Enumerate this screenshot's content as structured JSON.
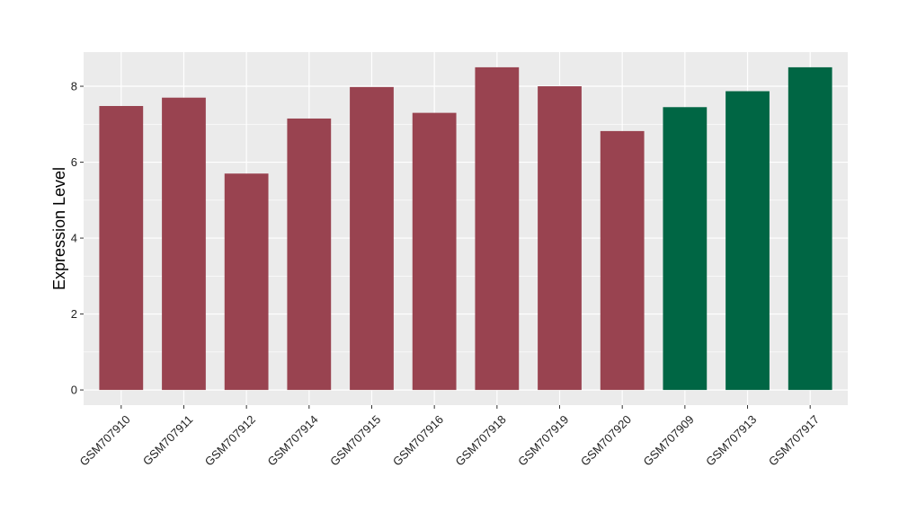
{
  "chart_data": {
    "type": "bar",
    "title": "",
    "xlabel": "",
    "ylabel": "Expression Level",
    "ylim": [
      -0.4,
      8.9
    ],
    "yticks": [
      0,
      2,
      4,
      6,
      8
    ],
    "grid": true,
    "legend": "none",
    "categories": [
      "GSM707910",
      "GSM707911",
      "GSM707912",
      "GSM707914",
      "GSM707915",
      "GSM707916",
      "GSM707918",
      "GSM707919",
      "GSM707920",
      "GSM707909",
      "GSM707913",
      "GSM707917"
    ],
    "values": [
      7.48,
      7.7,
      5.7,
      7.15,
      7.98,
      7.3,
      8.5,
      8.0,
      6.82,
      7.45,
      7.87,
      8.5
    ],
    "groups": [
      "group1",
      "group1",
      "group1",
      "group1",
      "group1",
      "group1",
      "group1",
      "group1",
      "group1",
      "group2",
      "group2",
      "group2"
    ],
    "colors": {
      "group1": "#994350",
      "group2": "#006644"
    },
    "panel_background": "#ebebeb",
    "grid_color": "#ffffff"
  }
}
